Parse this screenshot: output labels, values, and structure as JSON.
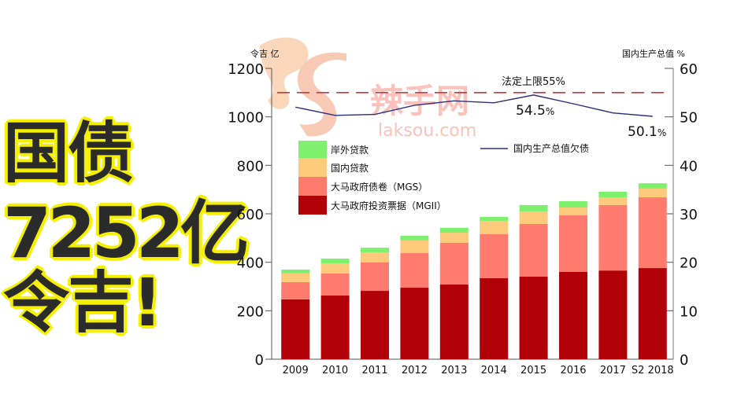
{
  "headline": {
    "line1": "国债",
    "line2": "7252亿",
    "line3": "令吉!"
  },
  "watermark": {
    "brand": "辣手网",
    "domain": "laksou.com"
  },
  "colors": {
    "offshore_loans": "#7ef06e",
    "domestic_loans": "#fdc97a",
    "mgs": "#ff7b6e",
    "mgii": "#b20008",
    "debt_line": "#2b2f7a",
    "limit_line": "#d6333a",
    "headline_text": "#2b2b2b",
    "headline_outline": "#f5f000"
  },
  "chart_data": {
    "type": "bar",
    "stacked": true,
    "title": "",
    "left_axis": {
      "label": "令吉 亿",
      "ticks": [
        0,
        200,
        400,
        600,
        800,
        1000,
        1200
      ],
      "ylim": [
        0,
        1200
      ]
    },
    "right_axis": {
      "label": "国内生产总值 %",
      "ticks": [
        0,
        10,
        20,
        30,
        40,
        50,
        60
      ],
      "ylim": [
        0,
        60
      ]
    },
    "categories": [
      "2009",
      "2010",
      "2011",
      "2012",
      "2013",
      "2014",
      "2015",
      "2016",
      "2017",
      "S2 2018"
    ],
    "series": [
      {
        "name": "大马政府投资票据（MGII）",
        "key": "mgii",
        "values": [
          247,
          263,
          282,
          295,
          308,
          334,
          341,
          360,
          366,
          376
        ]
      },
      {
        "name": "大马政府债卷（MGS）",
        "key": "mgs",
        "values": [
          71,
          91,
          118,
          143,
          172,
          182,
          217,
          234,
          270,
          292
        ]
      },
      {
        "name": "国内贷款",
        "key": "domestic_loans",
        "values": [
          36,
          41,
          40,
          52,
          42,
          55,
          52,
          32,
          32,
          36
        ]
      },
      {
        "name": "岸外贷款",
        "key": "offshore_loans",
        "values": [
          16,
          20,
          20,
          19,
          20,
          16,
          26,
          26,
          23,
          22
        ]
      }
    ],
    "line_series": {
      "name": "国内生产总值欠债",
      "axis": "right",
      "values": [
        52.0,
        50.3,
        50.5,
        52.4,
        53.3,
        52.9,
        54.5,
        52.7,
        50.8,
        50.1
      ]
    },
    "reference_line": {
      "label": "法定上限55%",
      "value": 55,
      "axis": "right",
      "style": "dashed"
    },
    "annotations": [
      {
        "text": "54.5",
        "suffix": "%",
        "category": "2015"
      },
      {
        "text": "50.1",
        "suffix": "%",
        "category": "S2 2018"
      }
    ],
    "legend": {
      "items": [
        "岸外贷款",
        "国内贷款",
        "大马政府债卷（MGS）",
        "大马政府投资票据（MGII）"
      ],
      "line_item": "国内生产总值欠债"
    },
    "xlabel": "",
    "ylabel": "令吉 亿",
    "grid": false,
    "total_text": "7252亿"
  }
}
